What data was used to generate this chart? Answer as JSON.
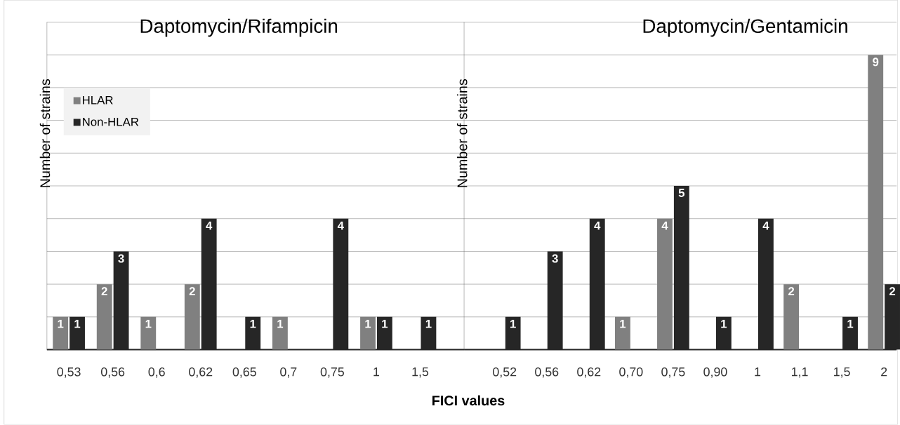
{
  "chart_data": [
    {
      "type": "bar",
      "title": "Daptomycin/Rifampicin",
      "ylabel": "Number of strains",
      "xlabel": "FICI values",
      "categories": [
        "0,53",
        "0,56",
        "0,6",
        "0,62",
        "0,65",
        "0,7",
        "0,75",
        "1",
        "1,5"
      ],
      "series": [
        {
          "name": "HLAR",
          "color": "#808080",
          "values": [
            1,
            2,
            1,
            2,
            null,
            1,
            null,
            1,
            null
          ]
        },
        {
          "name": "Non-HLAR",
          "color": "#262626",
          "values": [
            1,
            3,
            null,
            4,
            1,
            null,
            4,
            1,
            1
          ]
        }
      ],
      "ylim": [
        0,
        10
      ],
      "yticks": [
        {
          "value": 0,
          "label": null
        },
        {
          "value": 1,
          "label": null
        },
        {
          "value": 2,
          "label": null
        },
        {
          "value": 3,
          "label": null
        },
        {
          "value": 4,
          "label": null
        },
        {
          "value": 5,
          "label": null
        },
        {
          "value": 6,
          "label": null
        },
        {
          "value": 7,
          "label": null
        },
        {
          "value": 8,
          "label": null
        },
        {
          "value": 9,
          "label": null
        },
        {
          "value": 10,
          "label": null
        }
      ],
      "grid": "y",
      "legend": "top left",
      "data_labels": true,
      "tick_labels": "x"
    },
    {
      "type": "bar",
      "title": "Daptomycin/Gentamicin",
      "ylabel": "Number of strains",
      "categories": [
        "0,52",
        "0,56",
        "0,62",
        "0,70",
        "0,75",
        "0,90",
        "1",
        "1,1",
        "1,5",
        "2"
      ],
      "series": [
        {
          "color": "#808080",
          "values": [
            null,
            null,
            null,
            1,
            4,
            null,
            null,
            2,
            null,
            9
          ],
          "value_labels": [
            null,
            null,
            null,
            "1",
            "4",
            null,
            null,
            "2",
            null,
            "9"
          ]
        },
        {
          "color": "#262626",
          "values": [
            1,
            3,
            4,
            null,
            5,
            1,
            4,
            null,
            1,
            2
          ],
          "value_labels": [
            "1",
            "3",
            "4",
            null,
            "5",
            "1",
            "4",
            null,
            "1",
            "2"
          ]
        }
      ],
      "ylim": [
        0,
        10
      ],
      "yticks": [
        {
          "value": 0,
          "label": null
        },
        {
          "value": 1,
          "label": null
        },
        {
          "value": 2,
          "label": null
        },
        {
          "value": 3,
          "label": null
        },
        {
          "value": 4,
          "label": null
        },
        {
          "value": 5,
          "label": null
        },
        {
          "value": 6,
          "label": null
        },
        {
          "value": 7,
          "label": null
        },
        {
          "value": 8,
          "label": null
        },
        {
          "value": 9,
          "label": null
        },
        {
          "value": 10,
          "label": null
        }
      ],
      "grid": "y",
      "tick_labels": "x"
    }
  ]
}
